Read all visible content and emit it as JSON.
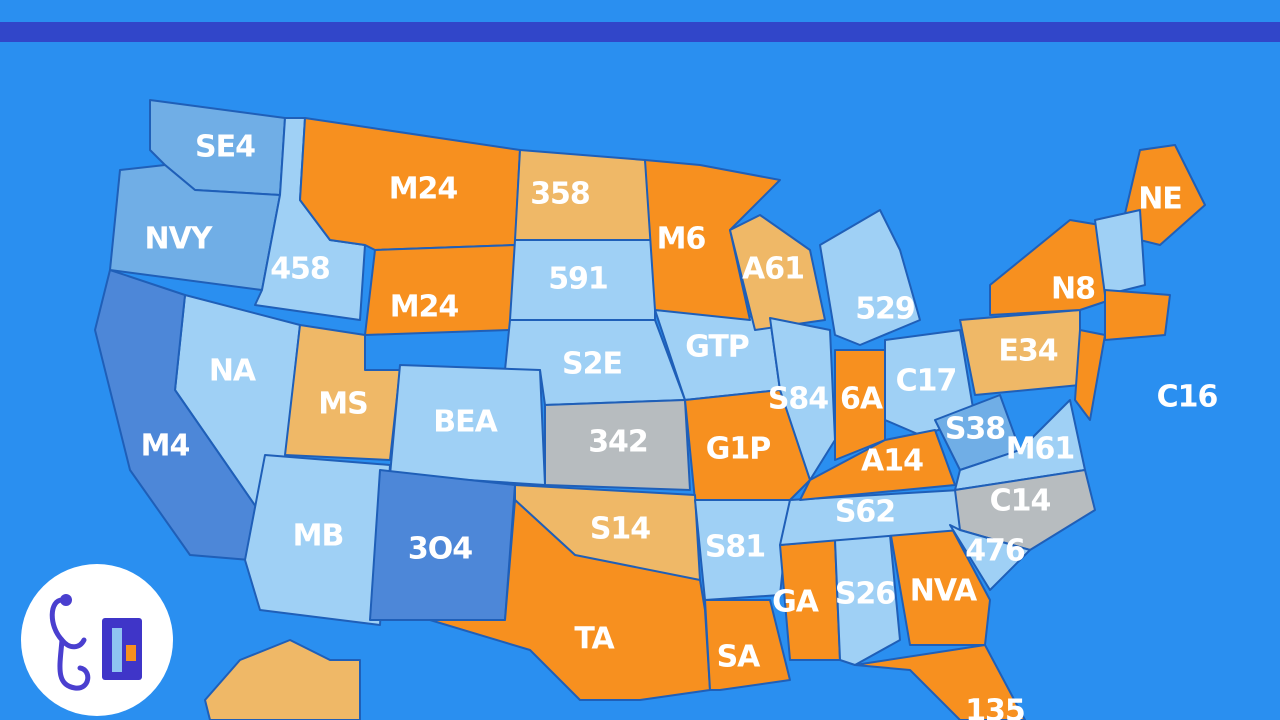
{
  "map": {
    "labels": [
      "SE4",
      "NVY",
      "458",
      "M24",
      "M24",
      "358",
      "591",
      "NA",
      "MS",
      "BEA",
      "S2E",
      "GTP",
      "342",
      "G1P",
      "M4",
      "MB",
      "3O4",
      "S14",
      "TA",
      "S81",
      "GA",
      "S26",
      "NVA",
      "SA",
      "S62",
      "A14",
      "S84",
      "6A",
      "C17",
      "E34",
      "S38",
      "M61",
      "C14",
      "476",
      "NE",
      "N8",
      "C16",
      "529",
      "A61",
      "M6",
      "135"
    ]
  }
}
